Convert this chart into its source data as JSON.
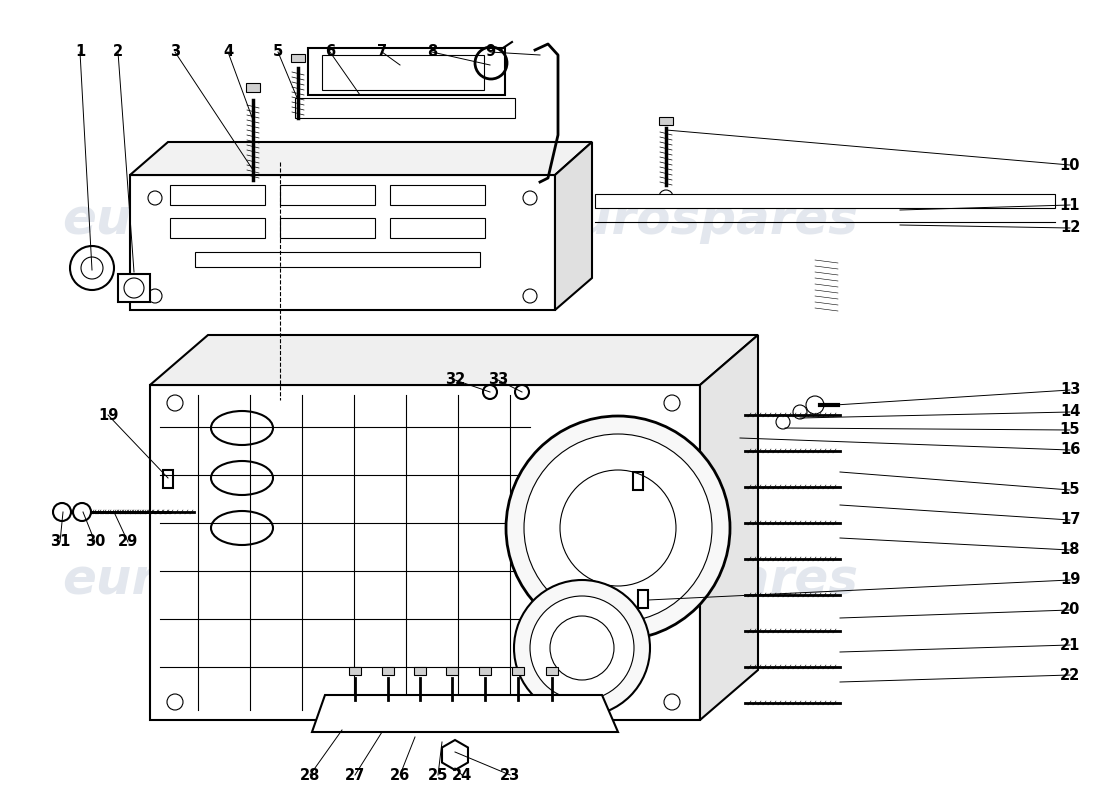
{
  "background_color": "#ffffff",
  "line_color": "#000000",
  "watermark_text": "eurospares",
  "watermark_color": "#cdd5e0",
  "lw_main": 1.5,
  "lw_thin": 0.8,
  "labels": [
    [
      1,
      80,
      52,
      92,
      270
    ],
    [
      2,
      118,
      52,
      134,
      272
    ],
    [
      3,
      175,
      52,
      253,
      170
    ],
    [
      4,
      228,
      52,
      253,
      120
    ],
    [
      5,
      278,
      52,
      298,
      100
    ],
    [
      6,
      330,
      52,
      360,
      95
    ],
    [
      7,
      382,
      52,
      400,
      65
    ],
    [
      8,
      432,
      52,
      490,
      65
    ],
    [
      9,
      490,
      52,
      540,
      55
    ],
    [
      10,
      1070,
      165,
      666,
      130
    ],
    [
      11,
      1070,
      205,
      900,
      210
    ],
    [
      12,
      1070,
      228,
      900,
      225
    ],
    [
      13,
      1070,
      390,
      835,
      405
    ],
    [
      14,
      1070,
      412,
      800,
      418
    ],
    [
      15,
      1070,
      430,
      785,
      428
    ],
    [
      16,
      1070,
      450,
      740,
      438
    ],
    [
      15,
      1070,
      490,
      840,
      472
    ],
    [
      17,
      1070,
      520,
      840,
      505
    ],
    [
      18,
      1070,
      550,
      840,
      538
    ],
    [
      19,
      1070,
      580,
      648,
      600
    ],
    [
      20,
      1070,
      610,
      840,
      618
    ],
    [
      21,
      1070,
      645,
      840,
      652
    ],
    [
      22,
      1070,
      675,
      840,
      682
    ],
    [
      19,
      108,
      415,
      168,
      478
    ],
    [
      32,
      455,
      380,
      490,
      392
    ],
    [
      33,
      498,
      380,
      522,
      392
    ],
    [
      23,
      510,
      775,
      455,
      752
    ],
    [
      24,
      462,
      775,
      455,
      768
    ],
    [
      25,
      438,
      775,
      442,
      742
    ],
    [
      26,
      400,
      775,
      415,
      737
    ],
    [
      27,
      355,
      775,
      382,
      732
    ],
    [
      28,
      310,
      775,
      342,
      730
    ],
    [
      29,
      128,
      542,
      114,
      512
    ],
    [
      30,
      95,
      542,
      83,
      512
    ],
    [
      31,
      60,
      542,
      63,
      512
    ]
  ]
}
